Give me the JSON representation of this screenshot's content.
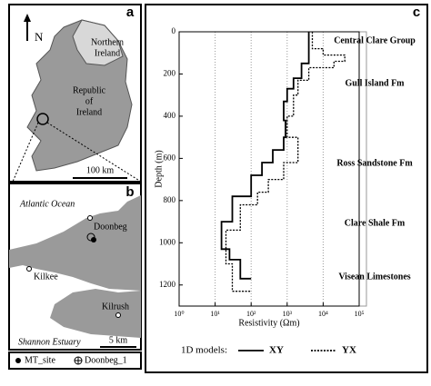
{
  "maps": {
    "a": {
      "label": "a",
      "north": "N",
      "northern_ireland": [
        "Northern",
        "Ireland"
      ],
      "republic": [
        "Republic",
        "of",
        "Ireland"
      ],
      "scale": "100 km"
    },
    "b": {
      "label": "b",
      "ocean": "Atlantic Ocean",
      "places": [
        "Doonbeg",
        "Kilkee",
        "Kilrush"
      ],
      "estuary": "Shannon Estuary",
      "scale": "5 km"
    },
    "legend": [
      "MT_site",
      "Doonbeg_1"
    ]
  },
  "chart_data": {
    "type": "line",
    "panel": "c",
    "ylabel": "Depth (m)",
    "xlabel": "Resistivity (Ωm)",
    "xlog": true,
    "xlim": [
      1,
      100000
    ],
    "ylim": [
      0,
      1300
    ],
    "y_inverted": true,
    "grid": true,
    "xticks": [
      {
        "value": 1,
        "label": "10⁰"
      },
      {
        "value": 10,
        "label": "10¹"
      },
      {
        "value": 100,
        "label": "10²"
      },
      {
        "value": 1000,
        "label": "10³"
      },
      {
        "value": 10000,
        "label": "10⁴"
      },
      {
        "value": 100000,
        "label": "10⁵"
      }
    ],
    "yticks": [
      0,
      200,
      400,
      600,
      800,
      1000,
      1200
    ],
    "annotations": [
      "Central Clare Group",
      "Gull Island Fm",
      "Ross Sandstone Fm",
      "Clare Shale Fm",
      "Visean Limestones"
    ],
    "legend_title": "1D models:",
    "series": [
      {
        "name": "XY",
        "color": "#000000",
        "style": "solid",
        "x": [
          4000,
          4000,
          2500,
          2500,
          1500,
          1500,
          1000,
          1000,
          800,
          800,
          900,
          900,
          800,
          800,
          400,
          400,
          200,
          200,
          100,
          100,
          30,
          30,
          15,
          15,
          25,
          25,
          50,
          50,
          100
        ],
        "y": [
          0,
          150,
          150,
          220,
          220,
          270,
          270,
          330,
          330,
          420,
          420,
          500,
          500,
          560,
          560,
          620,
          620,
          680,
          680,
          780,
          780,
          900,
          900,
          1030,
          1030,
          1080,
          1080,
          1170,
          1170
        ]
      },
      {
        "name": "YX",
        "color": "#000000",
        "style": "dotted",
        "x": [
          5000,
          5000,
          10000,
          10000,
          40000,
          40000,
          20000,
          20000,
          4000,
          4000,
          2000,
          2000,
          1500,
          1500,
          1000,
          1000,
          2000,
          2000,
          800,
          800,
          300,
          300,
          150,
          150,
          50,
          50,
          20,
          20,
          30,
          30,
          100
        ],
        "y": [
          0,
          80,
          80,
          110,
          110,
          140,
          140,
          170,
          170,
          230,
          230,
          300,
          300,
          400,
          400,
          500,
          500,
          620,
          620,
          700,
          700,
          760,
          760,
          820,
          820,
          940,
          940,
          1100,
          1100,
          1230,
          1230
        ]
      }
    ]
  }
}
